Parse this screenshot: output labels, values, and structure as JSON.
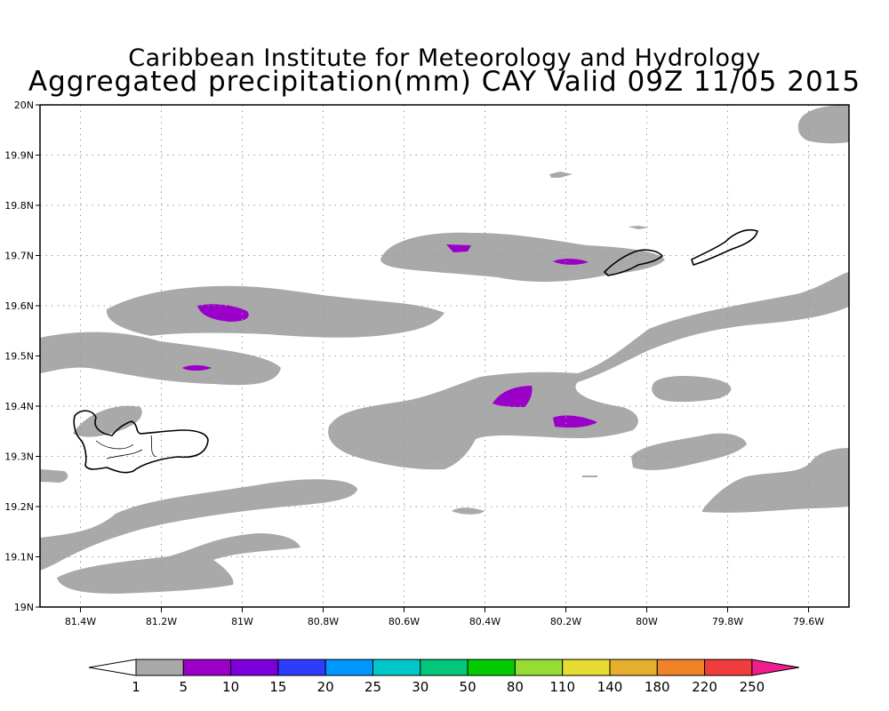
{
  "title": "Caribbean Institute for Meteorology and Hydrology",
  "subtitle": "Aggregated precipitation(mm) CAY Valid 09Z 11/05 2015",
  "map": {
    "lon_range": [
      -81.5,
      -79.5
    ],
    "lat_range": [
      19.0,
      20.0
    ],
    "x_ticks": [
      {
        "value": -81.4,
        "label": "81.4W"
      },
      {
        "value": -81.2,
        "label": "81.2W"
      },
      {
        "value": -81.0,
        "label": "81W"
      },
      {
        "value": -80.8,
        "label": "80.8W"
      },
      {
        "value": -80.6,
        "label": "80.6W"
      },
      {
        "value": -80.4,
        "label": "80.4W"
      },
      {
        "value": -80.2,
        "label": "80.2W"
      },
      {
        "value": -80.0,
        "label": "80W"
      },
      {
        "value": -79.8,
        "label": "79.8W"
      },
      {
        "value": -79.6,
        "label": "79.6W"
      }
    ],
    "y_ticks": [
      {
        "value": 19.0,
        "label": "19N"
      },
      {
        "value": 19.1,
        "label": "19.1N"
      },
      {
        "value": 19.2,
        "label": "19.2N"
      },
      {
        "value": 19.3,
        "label": "19.3N"
      },
      {
        "value": 19.4,
        "label": "19.4N"
      },
      {
        "value": 19.5,
        "label": "19.5N"
      },
      {
        "value": 19.6,
        "label": "19.6N"
      },
      {
        "value": 19.7,
        "label": "19.7N"
      },
      {
        "value": 19.8,
        "label": "19.8N"
      },
      {
        "value": 19.9,
        "label": "19.9N"
      },
      {
        "value": 20.0,
        "label": "20N"
      }
    ],
    "grid": "dotted",
    "precip_light_color": "#a9a9a9",
    "precip_heavy_color": "#9b00c8",
    "islands": [
      "grand-cayman",
      "little-cayman",
      "cayman-brac"
    ]
  },
  "colorbar": {
    "colors": [
      "#a9a9a9",
      "#9b00c8",
      "#7d00dc",
      "#2d3cff",
      "#0096ff",
      "#00c8c8",
      "#00c878",
      "#00cc00",
      "#96dc32",
      "#e6dc32",
      "#e6af2d",
      "#f08228",
      "#f03c3c"
    ],
    "low_color": "#ffffff",
    "high_color": "#f01e8c",
    "labels": [
      "1",
      "5",
      "10",
      "15",
      "20",
      "25",
      "30",
      "50",
      "80",
      "110",
      "140",
      "180",
      "220",
      "250"
    ]
  }
}
